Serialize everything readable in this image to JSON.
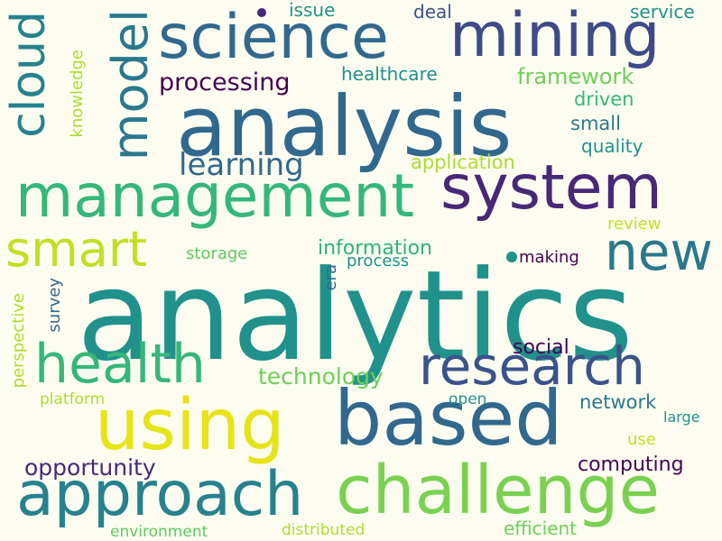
{
  "cloud": {
    "words": [
      {
        "text": "analytics",
        "color": "#21918c"
      },
      {
        "text": "analysis",
        "color": "#31688e"
      },
      {
        "text": "system",
        "color": "#482878"
      },
      {
        "text": "science",
        "color": "#31688e"
      },
      {
        "text": "mining",
        "color": "#3e4a89"
      },
      {
        "text": "management",
        "color": "#35b779"
      },
      {
        "text": "based",
        "color": "#31688e"
      },
      {
        "text": "approach",
        "color": "#26828e"
      },
      {
        "text": "challenge",
        "color": "#7ad151"
      },
      {
        "text": "using",
        "color": "#e6e419"
      },
      {
        "text": "research",
        "color": "#3b528b"
      },
      {
        "text": "health",
        "color": "#35b779"
      },
      {
        "text": "new",
        "color": "#2a788e"
      },
      {
        "text": "smart",
        "color": "#c2df23"
      },
      {
        "text": "model",
        "color": "#2a788e"
      },
      {
        "text": "cloud",
        "color": "#26828e"
      },
      {
        "text": "learning",
        "color": "#31688e"
      },
      {
        "text": "processing",
        "color": "#440154"
      },
      {
        "text": "framework",
        "color": "#6ece58"
      },
      {
        "text": "technology",
        "color": "#6ece58"
      },
      {
        "text": "opportunity",
        "color": "#482878"
      },
      {
        "text": "information",
        "color": "#2db27d"
      },
      {
        "text": "social",
        "color": "#440154"
      },
      {
        "text": "computing",
        "color": "#440154"
      },
      {
        "text": "network",
        "color": "#2a788e"
      },
      {
        "text": "application",
        "color": "#addc30"
      },
      {
        "text": "small",
        "color": "#2a788e"
      },
      {
        "text": "quality",
        "color": "#21918c"
      },
      {
        "text": "driven",
        "color": "#35b779"
      },
      {
        "text": "healthcare",
        "color": "#21918c"
      },
      {
        "text": "issue",
        "color": "#21918c"
      },
      {
        "text": "deal",
        "color": "#3b528b"
      },
      {
        "text": "service",
        "color": "#21918c"
      },
      {
        "text": "knowledge",
        "color": "#addc30"
      },
      {
        "text": "review",
        "color": "#c2df23"
      },
      {
        "text": "storage",
        "color": "#5ec962"
      },
      {
        "text": "process",
        "color": "#21918c"
      },
      {
        "text": "making",
        "color": "#440154"
      },
      {
        "text": "era",
        "color": "#31688e"
      },
      {
        "text": "survey",
        "color": "#31688e"
      },
      {
        "text": "perspective",
        "color": "#addc30"
      },
      {
        "text": "platform",
        "color": "#addc30"
      },
      {
        "text": "open",
        "color": "#21918c"
      },
      {
        "text": "large",
        "color": "#21918c"
      },
      {
        "text": "use",
        "color": "#c2df23"
      },
      {
        "text": "environment",
        "color": "#5ec962"
      },
      {
        "text": "distributed",
        "color": "#addc30"
      },
      {
        "text": "efficient",
        "color": "#6ece58"
      }
    ]
  }
}
